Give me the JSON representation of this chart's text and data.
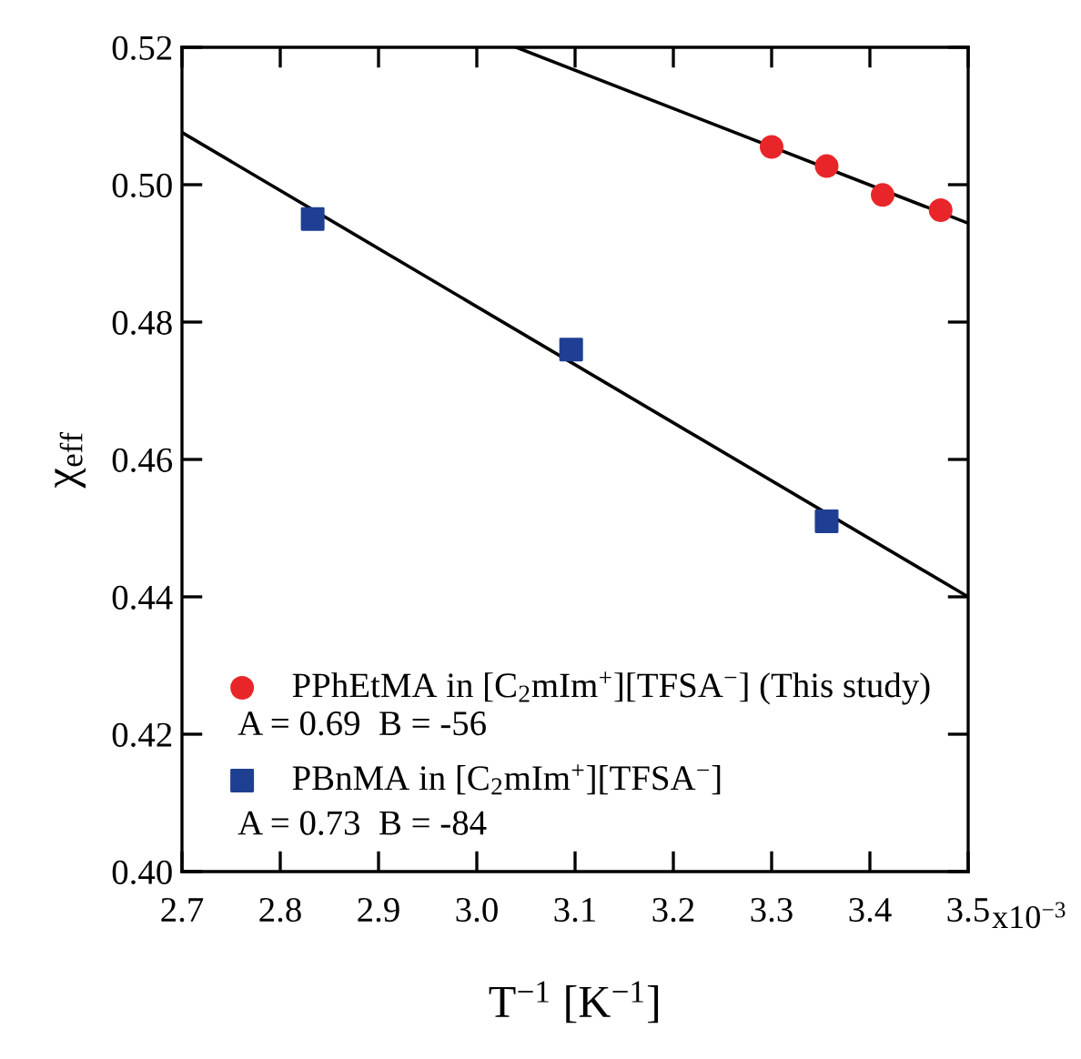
{
  "chart_data": {
    "type": "scatter",
    "xlabel": "T$^{−1}$ [K$^{−1}$]",
    "ylabel": "χ$_{eff}$",
    "xlim": [
      2.7,
      3.5
    ],
    "xticks": [
      2.7,
      2.8,
      2.9,
      {
        "value": 3.0,
        "label": "3.0"
      },
      3.1,
      3.2,
      3.3,
      3.4,
      3.5
    ],
    "ylim": [
      0.4,
      0.52
    ],
    "yticks": [
      {
        "value": 0.4,
        "label": "0.40"
      },
      0.42,
      0.44,
      0.46,
      0.48,
      {
        "value": 0.5,
        "label": "0.50"
      },
      0.52
    ],
    "grid": false,
    "legend": "bottom left",
    "series": [
      {
        "name": "PPhEtMA in [C$_{2}$mIm$^{+}$][TFSA$^{−}$] (This study)",
        "marker": "circle",
        "color": "#e8262a",
        "x": [
          3.3,
          3.356,
          3.413,
          3.472
        ],
        "values": [
          0.5055,
          0.5027,
          0.4985,
          0.4963
        ]
      },
      {
        "name": "PBnMA in [C$_{2}$mIm$^{+}$][TFSA$^{−}$]",
        "marker": "square",
        "color": "#1f3f93",
        "x": [
          2.833,
          3.096,
          3.356
        ],
        "values": [
          0.495,
          0.476,
          0.451
        ]
      },
      {
        "type": "line",
        "marker": "none",
        "line_style": "solid",
        "color": "#000000",
        "x": [
          3.04,
          3.498
        ],
        "values": [
          0.52,
          0.4945
        ]
      },
      {
        "type": "line",
        "marker": "none",
        "line_style": "solid",
        "color": "#000000",
        "x": [
          2.7,
          3.5
        ],
        "values": [
          0.5076,
          0.44
        ]
      }
    ],
    "annotations": [
      "A = 0.69  B = -56",
      "A = 0.73  B = -84",
      "x10$^{−3}$"
    ]
  }
}
